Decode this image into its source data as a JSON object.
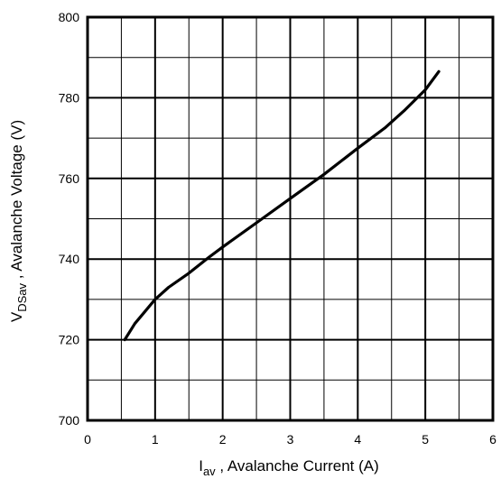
{
  "chart_data": {
    "type": "line",
    "xlabel": {
      "main": "I",
      "sub": "av",
      "rest": " , Avalanche Current  (A)"
    },
    "ylabel": {
      "main": "V",
      "sub": "DSav",
      "rest": " , Avalanche Voltage (V)"
    },
    "xlim": [
      0,
      6
    ],
    "ylim": [
      700,
      800
    ],
    "x_ticks": [
      "0",
      "1",
      "2",
      "3",
      "4",
      "5",
      "6"
    ],
    "y_ticks": [
      "700",
      "720",
      "740",
      "760",
      "780",
      "800"
    ],
    "grid": true,
    "series": [
      {
        "color": "#000000",
        "x": [
          0.55,
          0.7,
          0.85,
          1.0,
          1.2,
          1.5,
          1.8,
          2.0,
          2.5,
          3.0,
          3.5,
          4.0,
          4.4,
          4.7,
          5.0,
          5.2
        ],
        "y": [
          720,
          724,
          727,
          730,
          733,
          736.5,
          740.5,
          743,
          749,
          755,
          761,
          767.5,
          772.5,
          777,
          782,
          786.5
        ]
      }
    ]
  }
}
